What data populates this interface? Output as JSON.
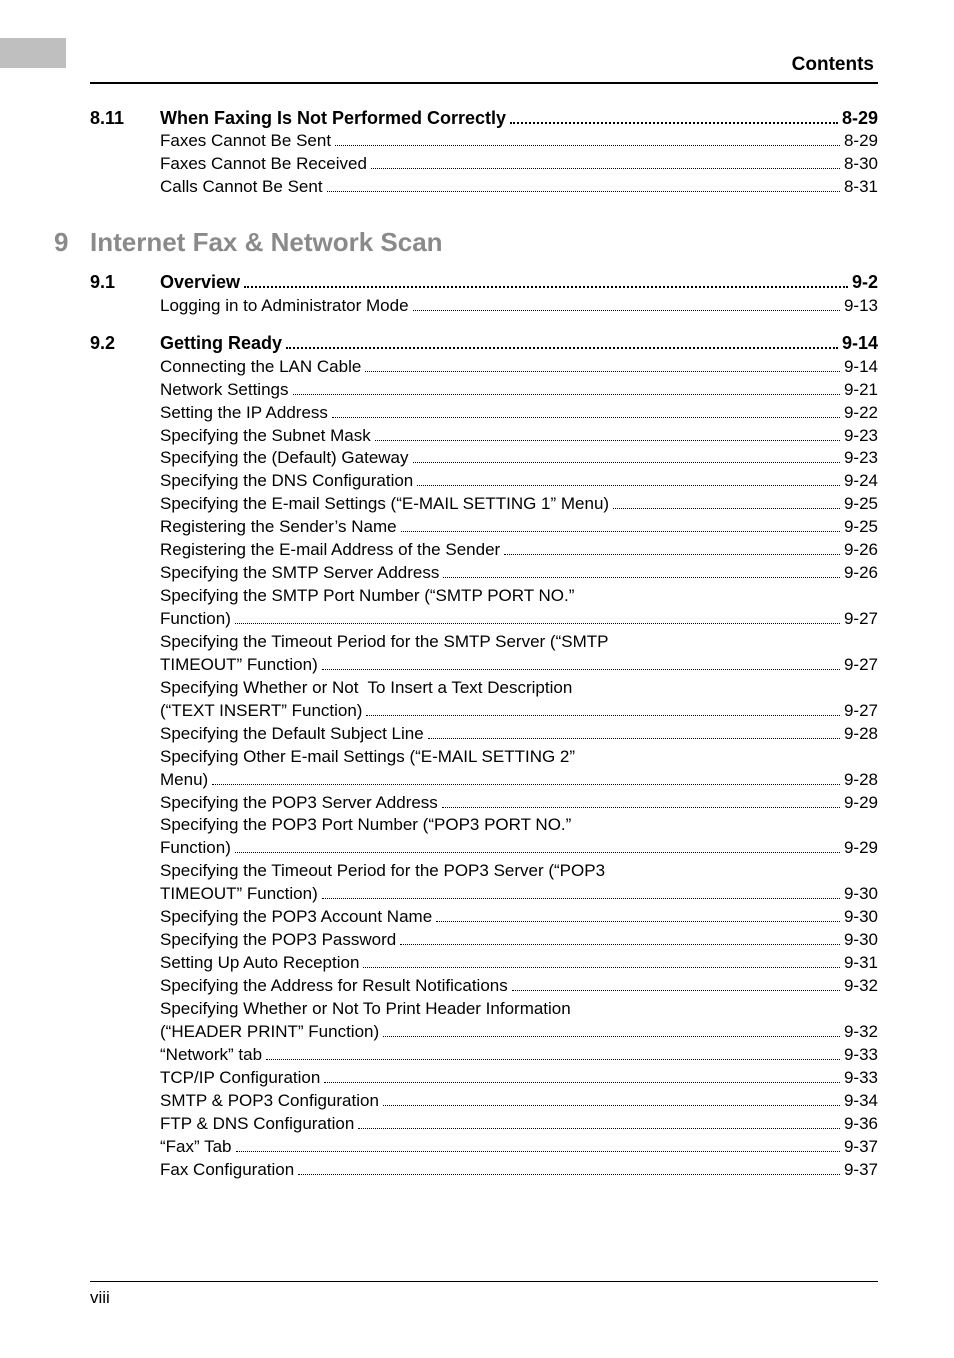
{
  "header": {
    "section_label": "Contents"
  },
  "sections": [
    {
      "num": "8.11",
      "title": "When Faxing Is Not Performed Correctly",
      "page": "8-29",
      "items": [
        {
          "label": "Faxes Cannot Be Sent",
          "page": "8-29"
        },
        {
          "label": "Faxes Cannot Be Received",
          "page": "8-30"
        },
        {
          "label": "Calls Cannot Be Sent",
          "page": "8-31"
        }
      ]
    }
  ],
  "chapter": {
    "num": "9",
    "title": "Internet Fax & Network Scan"
  },
  "sections2": [
    {
      "num": "9.1",
      "title": "Overview",
      "page": "9-2",
      "items": [
        {
          "label": "Logging in to Administrator Mode",
          "page": "9-13"
        }
      ]
    },
    {
      "num": "9.2",
      "title": "Getting Ready",
      "page": "9-14",
      "items": [
        {
          "label": "Connecting the LAN Cable",
          "page": "9-14"
        },
        {
          "label": "Network Settings",
          "page": "9-21"
        },
        {
          "label": "Setting the IP Address",
          "page": "9-22"
        },
        {
          "label": "Specifying the Subnet Mask",
          "page": "9-23"
        },
        {
          "label": "Specifying the (Default) Gateway",
          "page": "9-23"
        },
        {
          "label": "Specifying the DNS Configuration",
          "page": "9-24"
        },
        {
          "label": "Specifying the E-mail Settings (“E-MAIL SETTING 1” Menu)",
          "page": "9-25",
          "tight": true
        },
        {
          "label": "Registering the Sender’s Name",
          "page": "9-25"
        },
        {
          "label": "Registering the E-mail Address of the Sender",
          "page": "9-26"
        },
        {
          "label": "Specifying the SMTP Server Address",
          "page": "9-26"
        },
        {
          "label": "Specifying the SMTP Port Number (“SMTP PORT NO.”",
          "wrap": true
        },
        {
          "label": "Function)",
          "page": "9-27"
        },
        {
          "label": "Specifying the Timeout Period for the SMTP Server (“SMTP",
          "wrap": true
        },
        {
          "label": "TIMEOUT” Function)",
          "page": "9-27"
        },
        {
          "label": "Specifying Whether or Not  To Insert a Text Description",
          "wrap": true
        },
        {
          "label": "(“TEXT INSERT” Function)",
          "page": "9-27"
        },
        {
          "label": "Specifying the Default Subject Line",
          "page": "9-28"
        },
        {
          "label": "Specifying Other E-mail Settings (“E-MAIL SETTING 2”",
          "wrap": true
        },
        {
          "label": "Menu)",
          "page": "9-28"
        },
        {
          "label": "Specifying the POP3 Server Address",
          "page": "9-29"
        },
        {
          "label": "Specifying the POP3 Port Number (“POP3 PORT NO.”",
          "wrap": true
        },
        {
          "label": "Function)",
          "page": "9-29"
        },
        {
          "label": "Specifying the Timeout Period for the POP3 Server (“POP3",
          "wrap": true
        },
        {
          "label": "TIMEOUT” Function)",
          "page": "9-30"
        },
        {
          "label": "Specifying the POP3 Account Name",
          "page": "9-30"
        },
        {
          "label": "Specifying the POP3 Password",
          "page": "9-30"
        },
        {
          "label": "Setting Up Auto Reception",
          "page": "9-31"
        },
        {
          "label": "Specifying the Address for Result Notifications",
          "page": "9-32"
        },
        {
          "label": "Specifying Whether or Not To Print Header Information",
          "wrap": true
        },
        {
          "label": "(“HEADER PRINT” Function)",
          "page": "9-32"
        },
        {
          "label": "“Network” tab",
          "page": "9-33"
        },
        {
          "label": "TCP/IP Configuration",
          "page": "9-33"
        },
        {
          "label": "SMTP & POP3 Configuration",
          "page": "9-34"
        },
        {
          "label": "FTP & DNS Configuration",
          "page": "9-36"
        },
        {
          "label": "“Fax” Tab",
          "page": "9-37"
        },
        {
          "label": "Fax Configuration",
          "page": "9-37"
        }
      ]
    }
  ],
  "footer": {
    "page_number": "viii"
  }
}
